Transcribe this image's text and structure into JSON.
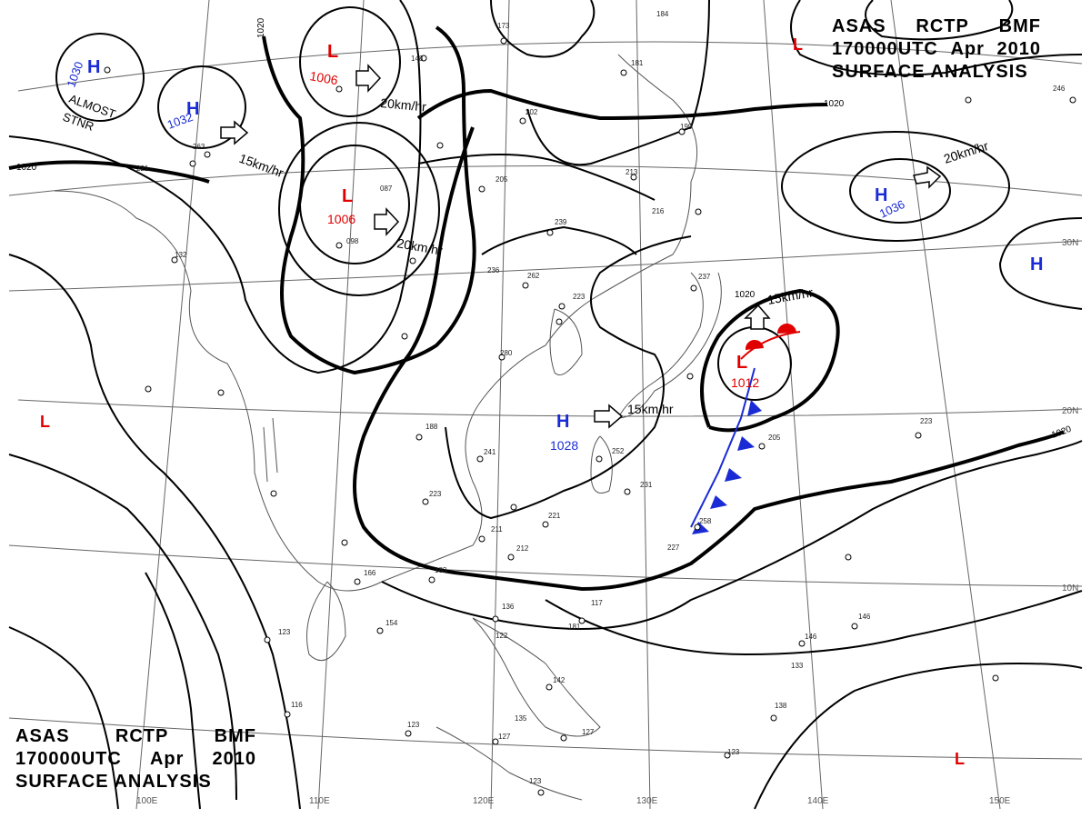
{
  "header": {
    "agency": "ASAS",
    "center": "RCTP",
    "office": "BMF",
    "time": "170000UTC",
    "month": "Apr",
    "year": "2010",
    "title": "SURFACE ANALYSIS"
  },
  "colors": {
    "high": "#1a2bd6",
    "low": "#e00000",
    "isobar": "#000000",
    "grid": "#666666",
    "warm_front": "#e00000",
    "cold_front": "#1a2bd6"
  },
  "pressure_centers": [
    {
      "type": "H",
      "value": "1030"
    },
    {
      "type": "H",
      "value": "1032"
    },
    {
      "type": "L",
      "value": "1006"
    },
    {
      "type": "L",
      "value": "1006"
    },
    {
      "type": "H",
      "value": "1036"
    },
    {
      "type": "H",
      "value": "1028"
    },
    {
      "type": "L",
      "value": "1012"
    },
    {
      "type": "H",
      "value": ""
    },
    {
      "type": "L",
      "value": ""
    },
    {
      "type": "L",
      "value": ""
    },
    {
      "type": "L",
      "value": ""
    }
  ],
  "movements": [
    "15km/hr",
    "20km/hr",
    "20km/hr",
    "20km/hr",
    "15km/hr",
    "15km/hr"
  ],
  "notes": [
    "ALMOST",
    "STNR"
  ],
  "isobar_labels": [
    "1020",
    "1020",
    "1020",
    "1020",
    "1020"
  ],
  "lon_labels": [
    "100E",
    "110E",
    "120E",
    "130E",
    "140E",
    "150E"
  ],
  "lat_labels": [
    "30N",
    "20N",
    "10N"
  ],
  "station_values": [
    "173",
    "148",
    "202",
    "205",
    "213",
    "216",
    "199",
    "239",
    "262",
    "236",
    "223",
    "280",
    "188",
    "241",
    "252",
    "231",
    "221",
    "212",
    "211",
    "223",
    "183",
    "166",
    "154",
    "123",
    "116",
    "123",
    "127",
    "135",
    "142",
    "122",
    "136",
    "117",
    "127",
    "123",
    "205",
    "223",
    "146",
    "146",
    "138",
    "123",
    "246",
    "237",
    "258",
    "132",
    "087",
    "098",
    "263",
    "221",
    "181",
    "184",
    "227",
    "181",
    "133"
  ]
}
